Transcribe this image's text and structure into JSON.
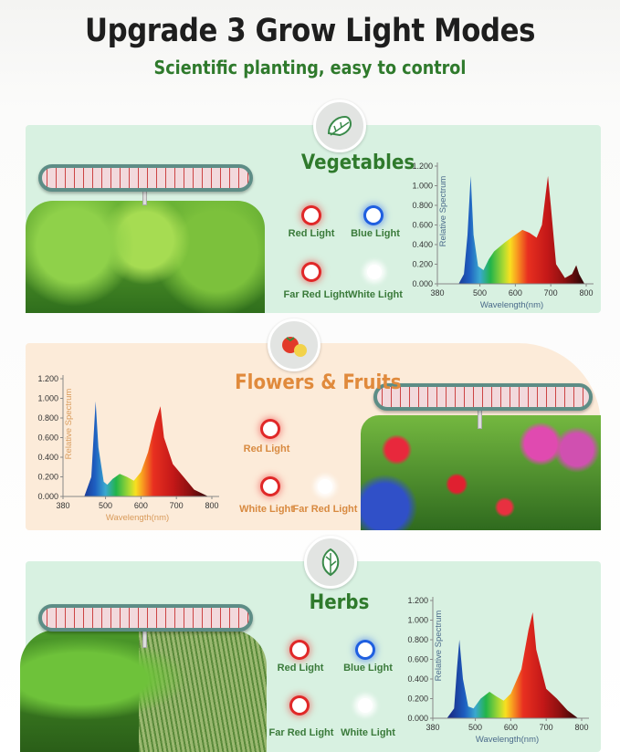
{
  "header": {
    "title": "Upgrade 3 Grow Light Modes",
    "subtitle": "Scientific planting, easy to control"
  },
  "colors": {
    "green_title": "#2f7a2c",
    "orange_title": "#e08a3c",
    "red_light": "#e02828",
    "blue_light": "#1f5fe0"
  },
  "panels": [
    {
      "title": "Vegetables",
      "icon": "lettuce-icon",
      "lights": [
        {
          "label": "Red Light",
          "color": "red"
        },
        {
          "label": "Blue Light",
          "color": "blue"
        },
        {
          "label": "Far Red Light",
          "color": "red"
        },
        {
          "label": "White Light",
          "color": "white"
        }
      ]
    },
    {
      "title": "Flowers & Fruits",
      "icon": "tomato-icon",
      "lights": [
        {
          "label": "Red Light",
          "color": "red"
        },
        {
          "label": "White Light",
          "color": "red"
        },
        {
          "label": "Far Red Light",
          "color": "white"
        }
      ]
    },
    {
      "title": "Herbs",
      "icon": "basil-leaf-icon",
      "lights": [
        {
          "label": "Red Light",
          "color": "red"
        },
        {
          "label": "Blue Light",
          "color": "blue"
        },
        {
          "label": "Far Red Light",
          "color": "red"
        },
        {
          "label": "White Light",
          "color": "white"
        }
      ]
    }
  ],
  "chart_data": [
    {
      "type": "area",
      "xlabel": "Wavelength(nm)",
      "ylabel": "Relative Spectrum",
      "xlim": [
        380,
        800
      ],
      "ylim": [
        0,
        1.2
      ],
      "xticks": [
        "380",
        "500",
        "600",
        "700",
        "800"
      ],
      "yticks": [
        "0.000",
        "0.200",
        "0.400",
        "0.600",
        "0.800",
        "1.000",
        "1.200"
      ],
      "grid": false,
      "x": [
        440,
        455,
        465,
        474,
        482,
        495,
        510,
        525,
        540,
        570,
        600,
        620,
        640,
        660,
        675,
        685,
        692,
        700,
        715,
        740,
        760,
        772,
        780,
        795
      ],
      "y": [
        0,
        0.1,
        0.5,
        1.1,
        0.5,
        0.18,
        0.14,
        0.25,
        0.33,
        0.42,
        0.5,
        0.55,
        0.52,
        0.47,
        0.6,
        0.9,
        1.1,
        0.8,
        0.2,
        0.06,
        0.1,
        0.19,
        0.1,
        0
      ]
    },
    {
      "type": "area",
      "xlabel": "Wavelength(nm)",
      "ylabel": "Relative Spectrum",
      "xlim": [
        380,
        800
      ],
      "ylim": [
        0,
        1.2
      ],
      "xticks": [
        "380",
        "500",
        "600",
        "700",
        "800"
      ],
      "yticks": [
        "0.000",
        "0.200",
        "0.400",
        "0.600",
        "0.800",
        "1.000",
        "1.200"
      ],
      "grid": false,
      "x": [
        440,
        460,
        472,
        480,
        495,
        505,
        520,
        540,
        560,
        580,
        600,
        620,
        640,
        655,
        665,
        690,
        720,
        750,
        790
      ],
      "y": [
        0,
        0.2,
        0.97,
        0.5,
        0.15,
        0.12,
        0.18,
        0.23,
        0.2,
        0.16,
        0.25,
        0.45,
        0.75,
        0.92,
        0.6,
        0.33,
        0.2,
        0.07,
        0
      ]
    },
    {
      "type": "area",
      "xlabel": "Wavelength(nm)",
      "ylabel": "Relative Spectrum",
      "xlim": [
        380,
        800
      ],
      "ylim": [
        0,
        1.2
      ],
      "xticks": [
        "380",
        "500",
        "600",
        "700",
        "800"
      ],
      "yticks": [
        "0.000",
        "0.200",
        "0.400",
        "0.600",
        "0.800",
        "1.000",
        "1.200"
      ],
      "grid": false,
      "x": [
        420,
        440,
        448,
        455,
        465,
        480,
        495,
        515,
        540,
        560,
        580,
        600,
        630,
        650,
        662,
        672,
        700,
        730,
        760,
        790
      ],
      "y": [
        0,
        0.1,
        0.5,
        0.8,
        0.4,
        0.12,
        0.1,
        0.2,
        0.27,
        0.22,
        0.18,
        0.25,
        0.5,
        0.9,
        1.08,
        0.7,
        0.3,
        0.2,
        0.08,
        0
      ]
    }
  ]
}
